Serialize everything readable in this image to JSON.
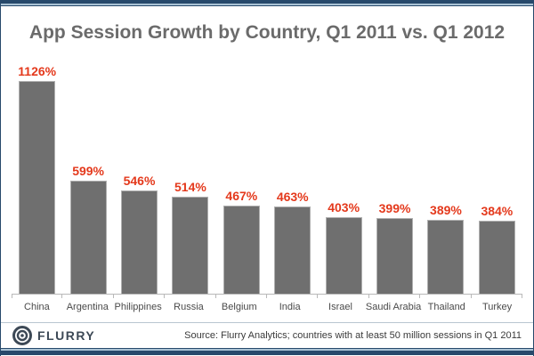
{
  "title": "App Session Growth by Country, Q1 2011 vs. Q1 2012",
  "chart_data": {
    "type": "bar",
    "title": "App Session Growth by Country, Q1 2011 vs. Q1 2012",
    "categories": [
      "China",
      "Argentina",
      "Philippines",
      "Russia",
      "Belgium",
      "India",
      "Israel",
      "Saudi Arabia",
      "Thailand",
      "Turkey"
    ],
    "values": [
      1126,
      599,
      546,
      514,
      467,
      463,
      403,
      399,
      389,
      384
    ],
    "value_labels": [
      "1126%",
      "599%",
      "546%",
      "514%",
      "467%",
      "463%",
      "403%",
      "399%",
      "389%",
      "384%"
    ],
    "unit": "%",
    "xlabel": "",
    "ylabel": "",
    "ylim": [
      0,
      1180
    ],
    "grid": false,
    "legend": false,
    "bar_color": "#6f6f6f",
    "bar_border_color": "#b0b0b0",
    "value_label_color": "#e4391c",
    "axis_line_color": "#b9b9b9"
  },
  "colors": {
    "frame_navy": "#27496b",
    "frame_light_blue": "#a9c2d4",
    "title_gray": "#6b6b6b"
  },
  "footer": {
    "brand": "FLURRY",
    "source": "Source: Flurry Analytics; countries with at least 50 million sessions in Q1 2011"
  }
}
